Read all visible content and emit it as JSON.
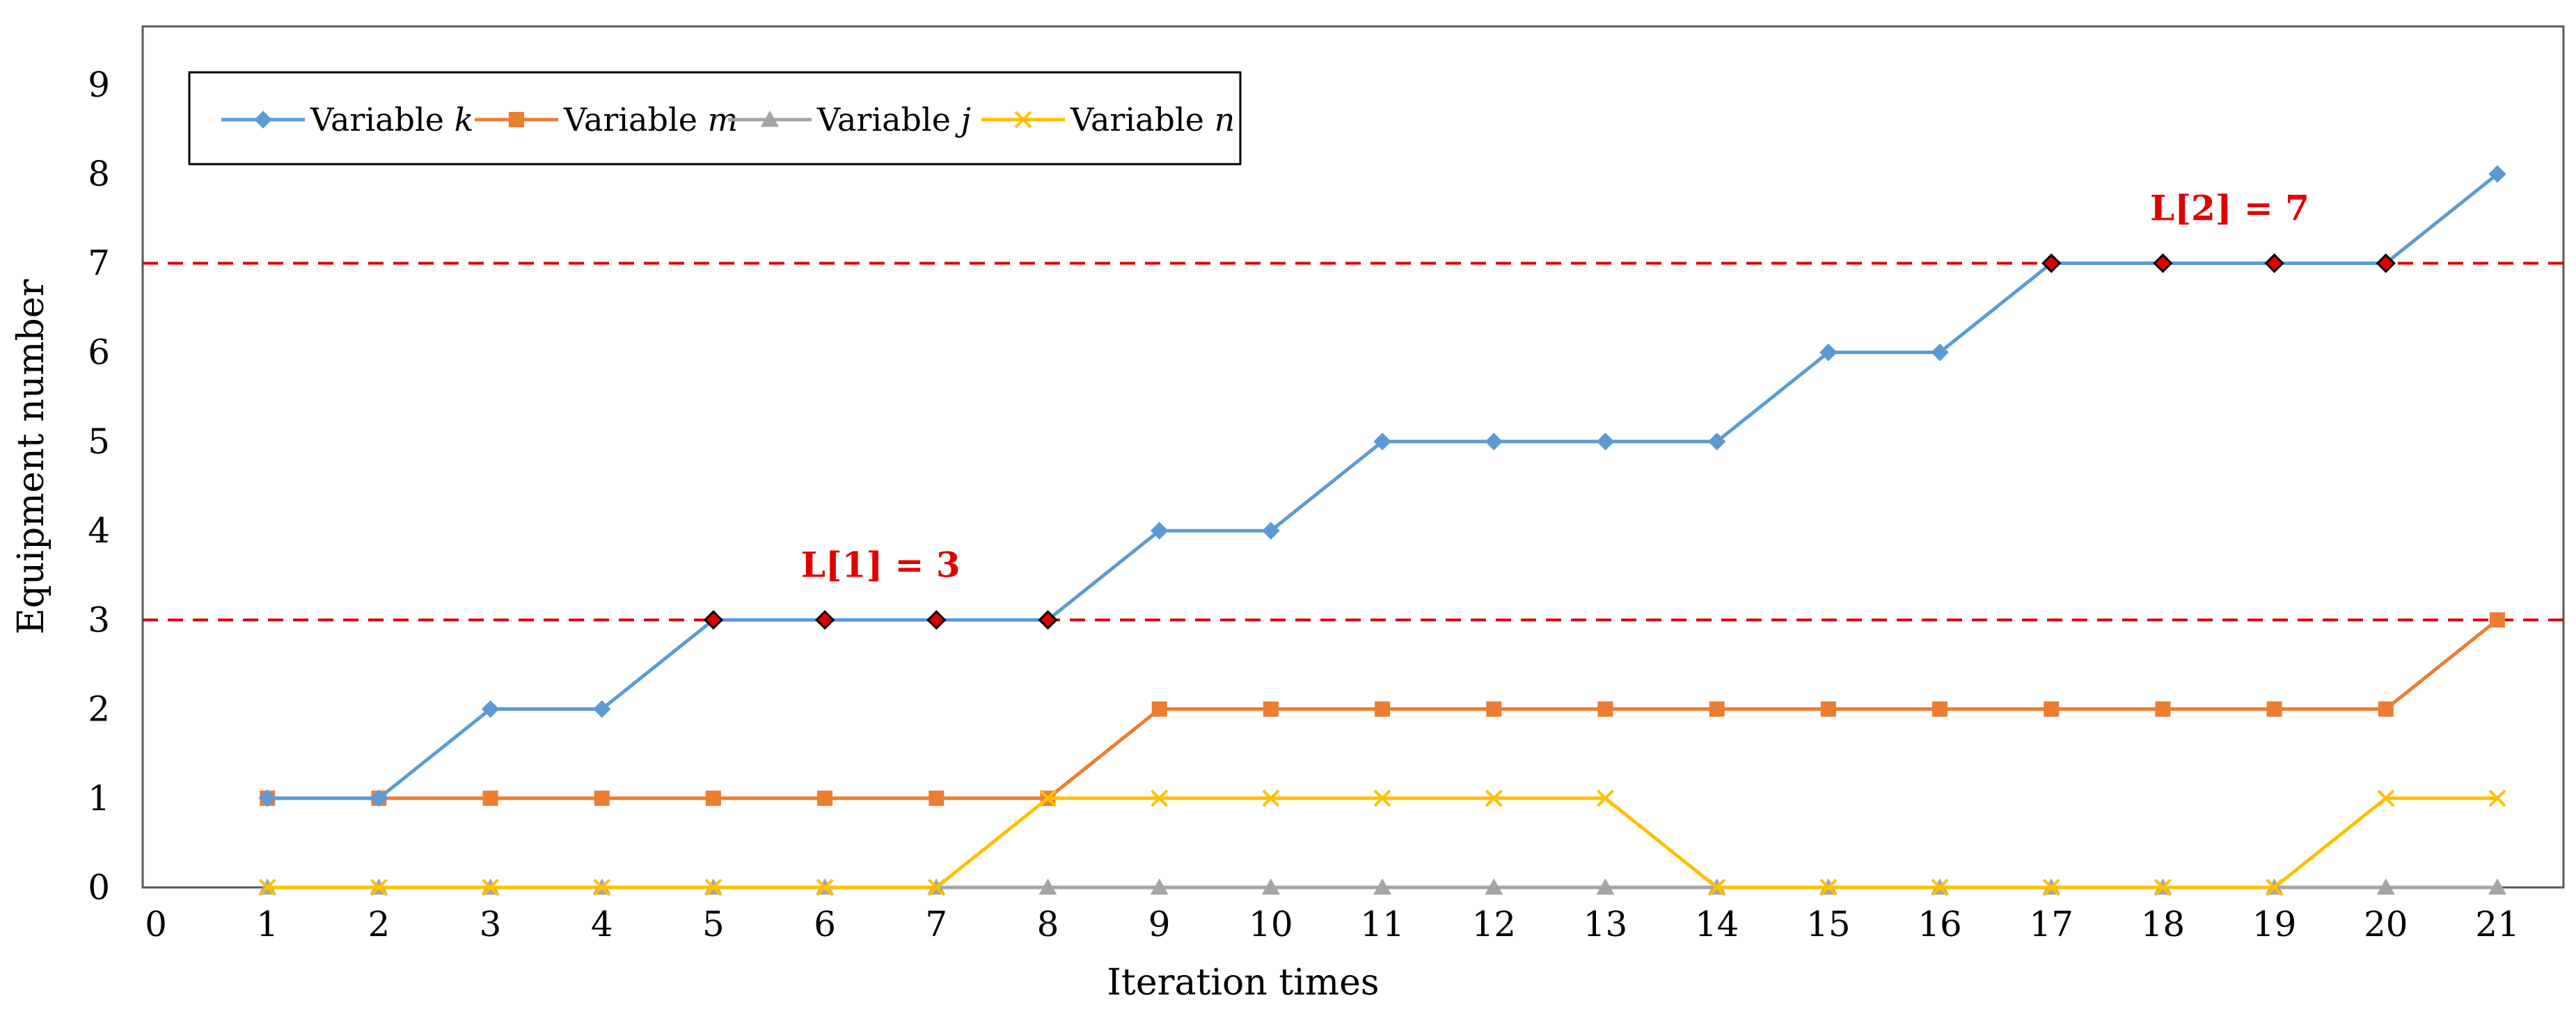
{
  "chart_data": {
    "type": "line",
    "xlabel": "Iteration times",
    "ylabel": "Equipment number",
    "xlim": [
      0,
      21
    ],
    "ylim": [
      0,
      9
    ],
    "x_ticks": [
      0,
      1,
      2,
      3,
      4,
      5,
      6,
      7,
      8,
      9,
      10,
      11,
      12,
      13,
      14,
      15,
      16,
      17,
      18,
      19,
      20,
      21
    ],
    "y_ticks": [
      0,
      1,
      2,
      3,
      4,
      5,
      6,
      7,
      8,
      9
    ],
    "grid": false,
    "legend_position": "top-left",
    "x": [
      1,
      2,
      3,
      4,
      5,
      6,
      7,
      8,
      9,
      10,
      11,
      12,
      13,
      14,
      15,
      16,
      17,
      18,
      19,
      20,
      21
    ],
    "series": [
      {
        "name": "Variable k",
        "legend_prefix": "Variable ",
        "legend_var": "k",
        "color": "#5B9BD5",
        "marker": "diamond",
        "values": [
          1,
          1,
          2,
          2,
          3,
          3,
          3,
          3,
          4,
          4,
          5,
          5,
          5,
          5,
          6,
          6,
          7,
          7,
          7,
          7,
          8
        ],
        "highlight_x": [
          5,
          6,
          7,
          8,
          17,
          18,
          19,
          20
        ],
        "highlight_color": "#E00000"
      },
      {
        "name": "Variable m",
        "legend_prefix": "Variable ",
        "legend_var": "m",
        "color": "#ED7D31",
        "marker": "square",
        "values": [
          1,
          1,
          1,
          1,
          1,
          1,
          1,
          1,
          2,
          2,
          2,
          2,
          2,
          2,
          2,
          2,
          2,
          2,
          2,
          2,
          3
        ]
      },
      {
        "name": "Variable j",
        "legend_prefix": "Variable ",
        "legend_var": "j",
        "color": "#A5A5A5",
        "marker": "triangle",
        "values": [
          0,
          0,
          0,
          0,
          0,
          0,
          0,
          0,
          0,
          0,
          0,
          0,
          0,
          0,
          0,
          0,
          0,
          0,
          0,
          0,
          0
        ]
      },
      {
        "name": "Variable n",
        "legend_prefix": "Variable ",
        "legend_var": "n",
        "color": "#FFC000",
        "marker": "x",
        "values": [
          0,
          0,
          0,
          0,
          0,
          0,
          0,
          1,
          1,
          1,
          1,
          1,
          1,
          0,
          0,
          0,
          0,
          0,
          0,
          1,
          1
        ]
      }
    ],
    "reference_lines": [
      {
        "y": 3,
        "color": "#E00000",
        "style": "dashed",
        "label": "L[1] = 3",
        "label_x": 6.5
      },
      {
        "y": 7,
        "color": "#E00000",
        "style": "dashed",
        "label": "L[2] = 7",
        "label_x": 18.6
      }
    ]
  }
}
